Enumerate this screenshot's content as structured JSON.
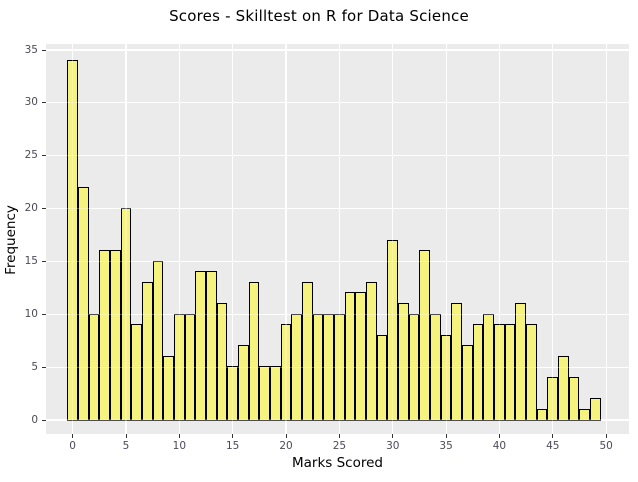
{
  "title": "Scores - Skilltest on R for Data Science",
  "chart_data": {
    "type": "bar",
    "subtype": "histogram",
    "title": "Scores - Skilltest on R for Data Science",
    "xlabel": "Marks Scored",
    "ylabel": "Frequency",
    "bin_width": 1,
    "first_bin_center": 0,
    "bin_centers": [
      0,
      1,
      2,
      3,
      4,
      5,
      6,
      7,
      8,
      9,
      10,
      11,
      12,
      13,
      14,
      15,
      16,
      17,
      18,
      19,
      20,
      21,
      22,
      23,
      24,
      25,
      26,
      27,
      28,
      29,
      30,
      31,
      32,
      33,
      34,
      35,
      36,
      37,
      38,
      39,
      40,
      41,
      42,
      43,
      44,
      45,
      46,
      47,
      48,
      49
    ],
    "values": [
      34,
      22,
      10,
      16,
      16,
      20,
      9,
      13,
      15,
      6,
      10,
      10,
      14,
      14,
      11,
      5,
      7,
      13,
      5,
      5,
      9,
      10,
      13,
      10,
      10,
      10,
      12,
      12,
      13,
      8,
      17,
      11,
      10,
      16,
      10,
      8,
      11,
      7,
      9,
      10,
      9,
      9,
      11,
      9,
      1,
      4,
      6,
      4,
      1,
      2
    ],
    "x_ticks": [
      0,
      5,
      10,
      15,
      20,
      25,
      30,
      35,
      40,
      45,
      50
    ],
    "y_ticks": [
      0,
      5,
      10,
      15,
      20,
      25,
      30,
      35
    ],
    "xlim": [
      -2.5,
      52.1
    ],
    "ylim": [
      -1.3,
      35.6
    ],
    "grid": "major-only",
    "legend": "none",
    "colors": {
      "bar_fill": "#F5F37E",
      "bar_border": "#000000",
      "panel_bg": "#EBEBEB",
      "gridline": "#FFFFFF",
      "gridline_over_bars": "rgba(255,255,255,0.30)",
      "tick_mark": "#333333",
      "tick_label": "#4A4A5A",
      "axis_title": "#000000",
      "title": "#000000"
    }
  }
}
